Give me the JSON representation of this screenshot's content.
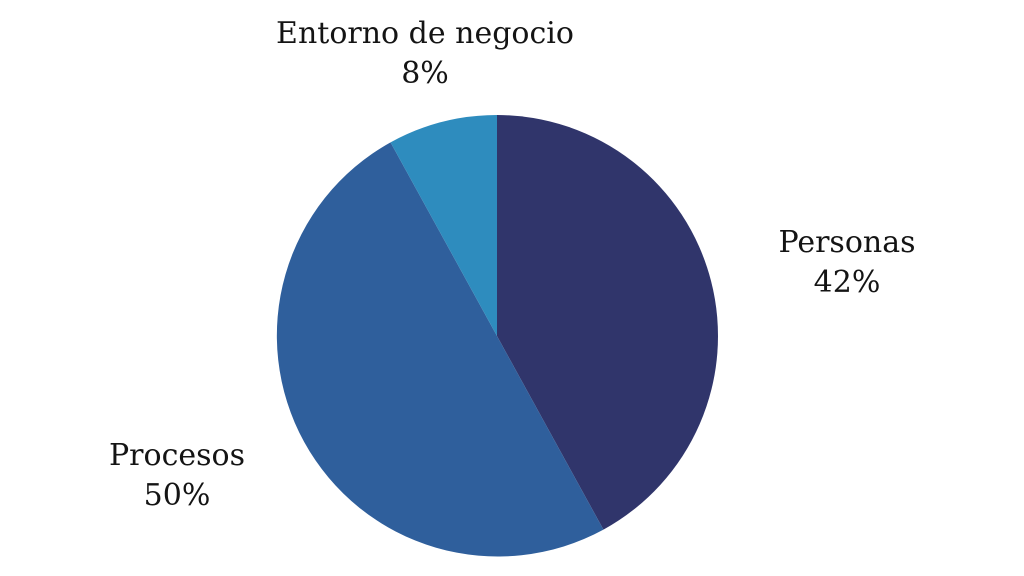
{
  "chart_data": {
    "type": "pie",
    "title": "",
    "start_angle_deg": 0,
    "direction": "clockwise",
    "legend": "outside-data-labels",
    "background_color": "#ffffff",
    "label_text_color": "#141414",
    "slices": [
      {
        "label": "Personas",
        "value": 42,
        "pct_label": "42%",
        "color": "#30356B"
      },
      {
        "label": "Procesos",
        "value": 50,
        "pct_label": "50%",
        "color": "#2F5F9C"
      },
      {
        "label": "Entorno de negocio",
        "value": 8,
        "pct_label": "8%",
        "color": "#2E8CBE"
      }
    ]
  }
}
